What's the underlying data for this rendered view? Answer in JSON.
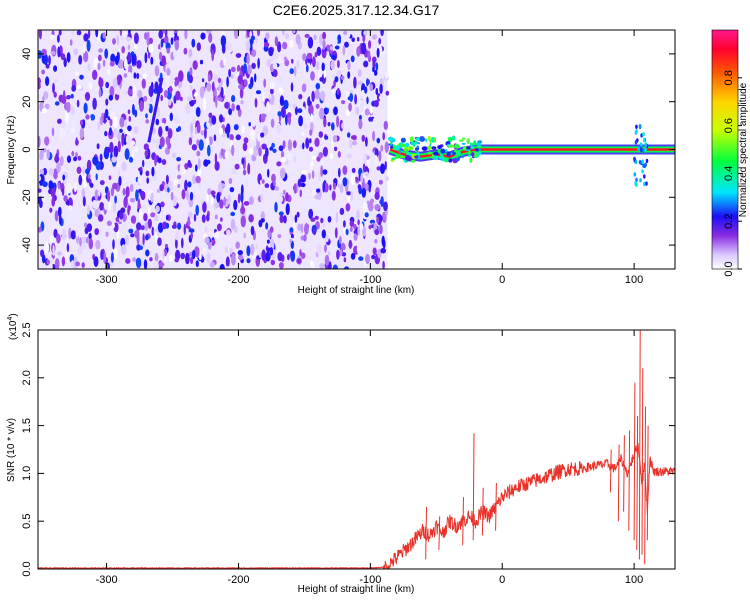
{
  "figure": {
    "title": "C2E6.2025.317.12.34.G17"
  },
  "chart_data": [
    {
      "type": "heatmap",
      "xlabel": "Height of straight line (km)",
      "ylabel": "Frequency (Hz)",
      "xlim": [
        -352,
        131
      ],
      "ylim": [
        -50,
        50
      ],
      "x_ticks": [
        -300,
        -200,
        -100,
        0,
        100
      ],
      "y_ticks": [
        -40,
        -20,
        0,
        20,
        40
      ],
      "colorbar": {
        "label": "Normalized spectral amplitude",
        "range": [
          0,
          1
        ],
        "ticks": [
          0.0,
          0.2,
          0.4,
          0.6,
          0.8
        ],
        "tick_labels": [
          "0.0",
          "0.2",
          "0.4",
          "0.6",
          "0.8"
        ]
      },
      "regions": [
        {
          "x_range": [
            -352,
            -87
          ],
          "y_range": [
            -50,
            50
          ],
          "pattern": "broadband noise",
          "amplitude": [
            0.0,
            0.25
          ]
        },
        {
          "x_range": [
            -87,
            131
          ],
          "y_range": [
            -2,
            2
          ],
          "pattern": "narrow carrier line near 0 Hz",
          "amplitude": [
            0.6,
            1.0
          ]
        }
      ],
      "carrier_center": [
        {
          "x": -85,
          "y": 0
        },
        {
          "x": -75,
          "y": -2
        },
        {
          "x": -62,
          "y": -3
        },
        {
          "x": -50,
          "y": -2
        },
        {
          "x": -40,
          "y": -3
        },
        {
          "x": -30,
          "y": -1
        },
        {
          "x": -20,
          "y": 0
        },
        {
          "x": 0,
          "y": 0
        },
        {
          "x": 50,
          "y": 0
        },
        {
          "x": 100,
          "y": 0
        },
        {
          "x": 131,
          "y": 0
        }
      ]
    },
    {
      "type": "line",
      "xlabel": "Height of straight line (km)",
      "ylabel": "SNR (10 * v/v)",
      "y_multiplier_label": "(x10",
      "y_multiplier_exp": "4",
      "y_multiplier_close": ")",
      "xlim": [
        -352,
        131
      ],
      "ylim": [
        0,
        2.5
      ],
      "x_ticks": [
        -300,
        -200,
        -100,
        0,
        100
      ],
      "y_ticks": [
        0.0,
        0.5,
        1.0,
        1.5,
        2.0,
        2.5
      ],
      "y_tick_labels": [
        "0.0",
        "0.5",
        "1.0",
        "1.5",
        "2.0",
        "2.5"
      ],
      "series": [
        {
          "color": "#e8322a",
          "x": [
            -352,
            -100,
            -88,
            -80,
            -70,
            -60,
            -55,
            -50,
            -45,
            -40,
            -35,
            -30,
            -25,
            -20,
            -15,
            -10,
            -5,
            0,
            5,
            10,
            20,
            30,
            40,
            50,
            60,
            70,
            80,
            85,
            90,
            95,
            100,
            103,
            106,
            108,
            110,
            112,
            115,
            120,
            131
          ],
          "y": [
            0.01,
            0.01,
            0.02,
            0.12,
            0.25,
            0.4,
            0.35,
            0.45,
            0.38,
            0.5,
            0.45,
            0.5,
            0.55,
            0.5,
            0.6,
            0.55,
            0.65,
            0.75,
            0.8,
            0.85,
            0.9,
            0.95,
            1.0,
            1.05,
            1.05,
            1.08,
            1.1,
            1.05,
            1.15,
            1.0,
            1.2,
            1.3,
            0.9,
            1.1,
            0.6,
            1.15,
            1.02,
            1.02,
            1.02
          ]
        }
      ],
      "spikes": [
        {
          "x": -58,
          "y_low": 0.1,
          "y_high": 0.65
        },
        {
          "x": -48,
          "y_low": 0.2,
          "y_high": 0.55
        },
        {
          "x": -30,
          "y_low": 0.25,
          "y_high": 0.75
        },
        {
          "x": -22,
          "y_low": 0.3,
          "y_high": 1.42
        },
        {
          "x": -15,
          "y_low": 0.35,
          "y_high": 0.85
        },
        {
          "x": -5,
          "y_low": 0.4,
          "y_high": 0.9
        },
        {
          "x": 82,
          "y_low": 0.8,
          "y_high": 1.25
        },
        {
          "x": 88,
          "y_low": 0.5,
          "y_high": 1.3
        },
        {
          "x": 92,
          "y_low": 0.6,
          "y_high": 1.4
        },
        {
          "x": 96,
          "y_low": 0.4,
          "y_high": 1.45
        },
        {
          "x": 100,
          "y_low": 0.3,
          "y_high": 1.95
        },
        {
          "x": 102,
          "y_low": 0.2,
          "y_high": 1.6
        },
        {
          "x": 104,
          "y_low": 0.1,
          "y_high": 2.5
        },
        {
          "x": 106,
          "y_low": 0.15,
          "y_high": 2.1
        },
        {
          "x": 108,
          "y_low": 0.05,
          "y_high": 1.7
        },
        {
          "x": 110,
          "y_low": 0.3,
          "y_high": 1.5
        }
      ]
    }
  ]
}
